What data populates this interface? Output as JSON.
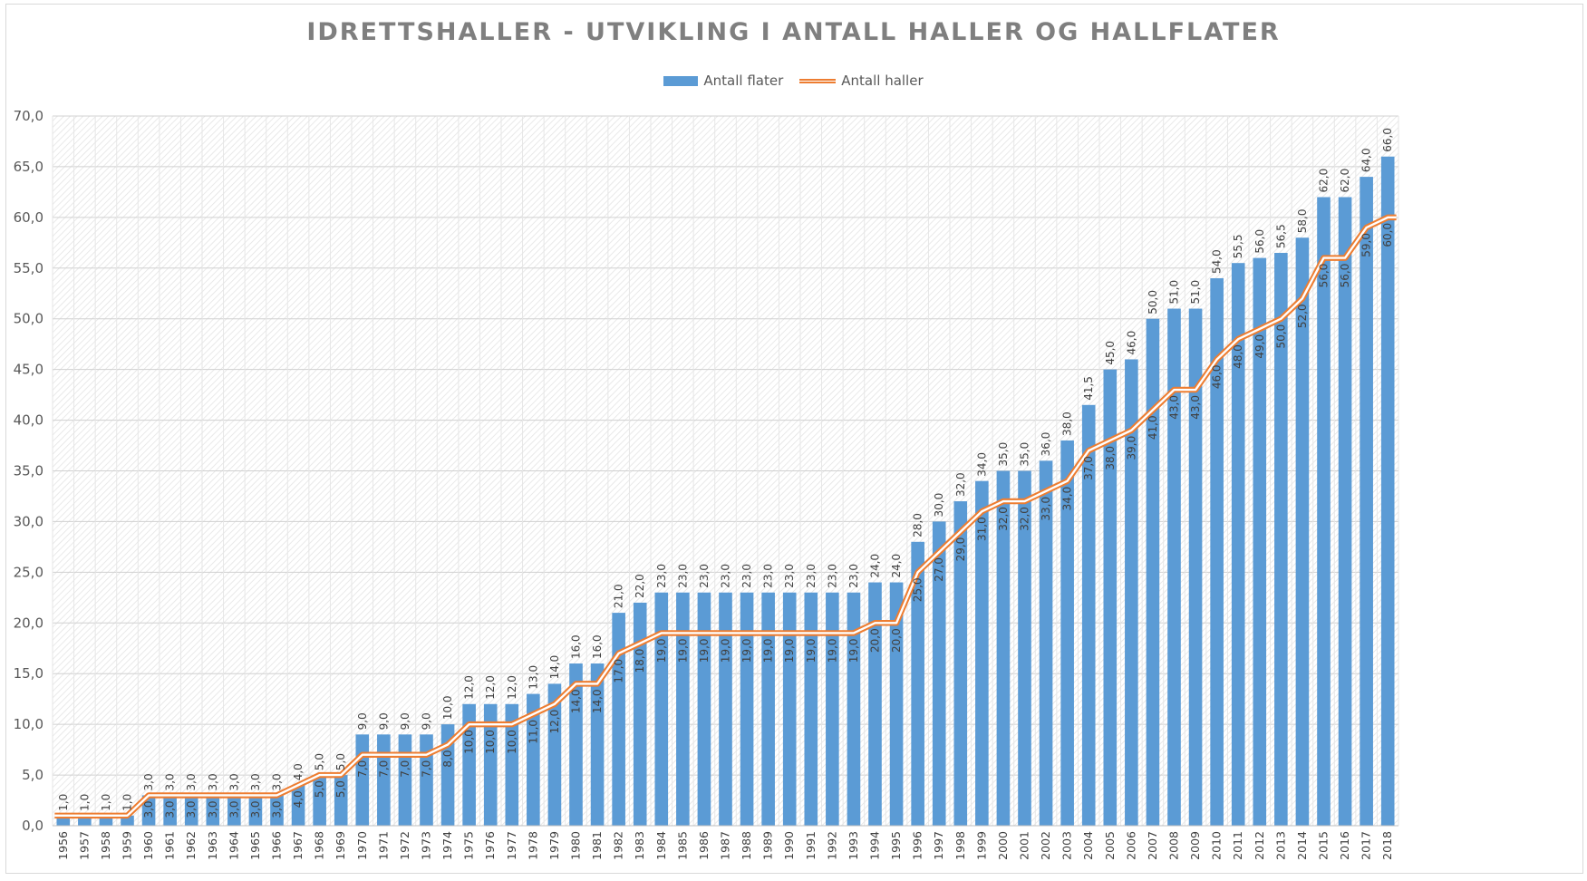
{
  "chart_data": {
    "type": "bar",
    "title": "IDRETTSHALLER - UTVIKLING I ANTALL HALLER OG HALLFLATER",
    "xlabel": "",
    "ylabel": "",
    "ylim": [
      0,
      70
    ],
    "y_step": 5,
    "y_ticks": [
      "0,0",
      "5,0",
      "10,0",
      "15,0",
      "20,0",
      "25,0",
      "30,0",
      "35,0",
      "40,0",
      "45,0",
      "50,0",
      "55,0",
      "60,0",
      "65,0",
      "70,0"
    ],
    "grid": true,
    "legend_position": "top",
    "categories": [
      "1956",
      "1957",
      "1958",
      "1959",
      "1960",
      "1961",
      "1962",
      "1963",
      "1964",
      "1965",
      "1966",
      "1967",
      "1968",
      "1969",
      "1970",
      "1971",
      "1972",
      "1973",
      "1974",
      "1975",
      "1976",
      "1977",
      "1978",
      "1979",
      "1980",
      "1981",
      "1982",
      "1983",
      "1984",
      "1985",
      "1986",
      "1987",
      "1988",
      "1989",
      "1990",
      "1991",
      "1992",
      "1993",
      "1994",
      "1995",
      "1996",
      "1997",
      "1998",
      "1999",
      "2000",
      "2001",
      "2002",
      "2003",
      "2004",
      "2005",
      "2006",
      "2007",
      "2008",
      "2009",
      "2010",
      "2011",
      "2012",
      "2013",
      "2014",
      "2015",
      "2016",
      "2017",
      "2018"
    ],
    "series": [
      {
        "name": "Antall flater",
        "type": "bar",
        "color": "#5b9bd5",
        "values": [
          1,
          1,
          1,
          1,
          3,
          3,
          3,
          3,
          3,
          3,
          3,
          4,
          5,
          5,
          9,
          9,
          9,
          9,
          10,
          12,
          12,
          12,
          13,
          14,
          16,
          16,
          21,
          22,
          23,
          23,
          23,
          23,
          23,
          23,
          23,
          23,
          23,
          23,
          24,
          24,
          28,
          30,
          32,
          34,
          35,
          35,
          36,
          38,
          41.5,
          45,
          46,
          50,
          51,
          51,
          54,
          55.5,
          56,
          56.5,
          58,
          62,
          62,
          64,
          66
        ],
        "labels": [
          "1,0",
          "1,0",
          "1,0",
          "1,0",
          "3,0",
          "3,0",
          "3,0",
          "3,0",
          "3,0",
          "3,0",
          "3,0",
          "4,0",
          "5,0",
          "5,0",
          "9,0",
          "9,0",
          "9,0",
          "9,0",
          "10,0",
          "12,0",
          "12,0",
          "12,0",
          "13,0",
          "14,0",
          "16,0",
          "16,0",
          "21,0",
          "22,0",
          "23,0",
          "23,0",
          "23,0",
          "23,0",
          "23,0",
          "23,0",
          "23,0",
          "23,0",
          "23,0",
          "23,0",
          "24,0",
          "24,0",
          "28,0",
          "30,0",
          "32,0",
          "34,0",
          "35,0",
          "35,0",
          "36,0",
          "38,0",
          "41,5",
          "45,0",
          "46,0",
          "50,0",
          "51,0",
          "51,0",
          "54,0",
          "55,5",
          "56,0",
          "56,5",
          "58,0",
          "62,0",
          "62,0",
          "64,0",
          "66,0"
        ]
      },
      {
        "name": "Antall haller",
        "type": "line",
        "color": "#ed7d31",
        "values": [
          1,
          1,
          1,
          1,
          3,
          3,
          3,
          3,
          3,
          3,
          3,
          4,
          5,
          5,
          7,
          7,
          7,
          7,
          8,
          10,
          10,
          10,
          11,
          12,
          14,
          14,
          17,
          18,
          19,
          19,
          19,
          19,
          19,
          19,
          19,
          19,
          19,
          19,
          20,
          20,
          25,
          27,
          29,
          31,
          32,
          32,
          33,
          34,
          37,
          38,
          39,
          41,
          43,
          43,
          46,
          48,
          49,
          50,
          52,
          56,
          56,
          59,
          60
        ],
        "labels": [
          "",
          "",
          "",
          "",
          "3,0",
          "3,0",
          "3,0",
          "3,0",
          "3,0",
          "3,0",
          "3,0",
          "4,0",
          "5,0",
          "5,0",
          "7,0",
          "7,0",
          "7,0",
          "7,0",
          "8,0",
          "10,0",
          "10,0",
          "10,0",
          "11,0",
          "12,0",
          "14,0",
          "14,0",
          "17,0",
          "18,0",
          "19,0",
          "19,0",
          "19,0",
          "19,0",
          "19,0",
          "19,0",
          "19,0",
          "19,0",
          "19,0",
          "19,0",
          "20,0",
          "20,0",
          "25,0",
          "27,0",
          "29,0",
          "31,0",
          "32,0",
          "32,0",
          "33,0",
          "34,0",
          "37,0",
          "38,0",
          "39,0",
          "41,0",
          "43,0",
          "43,0",
          "46,0",
          "48,0",
          "49,0",
          "50,0",
          "52,0",
          "56,0",
          "56,0",
          "59,0",
          "60,0"
        ]
      }
    ]
  }
}
